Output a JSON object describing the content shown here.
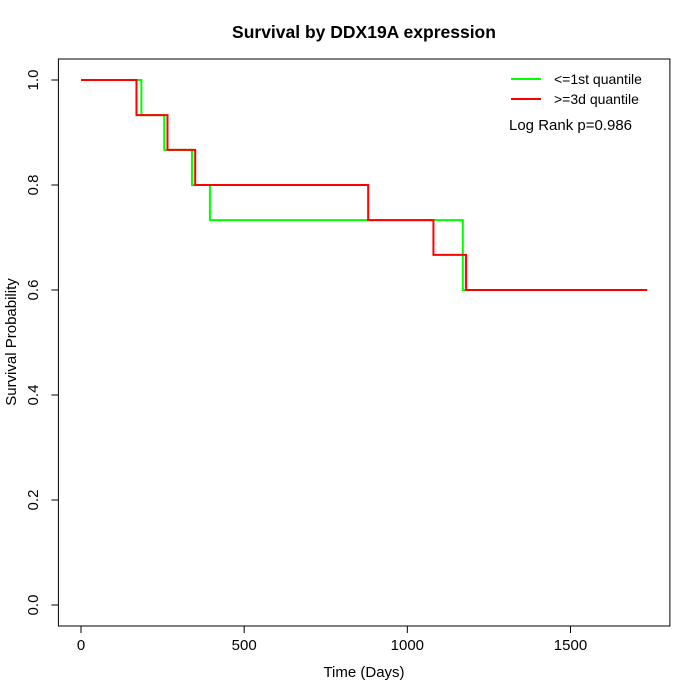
{
  "chart_data": {
    "type": "line",
    "subtype": "kaplan_meier_step_curve",
    "title": "Survival by DDX19A expression",
    "xlabel": "Time (Days)",
    "ylabel": "Survival Probability",
    "xticks": [
      0,
      500,
      1000,
      1500
    ],
    "xtick_labels": [
      "0",
      "500",
      "1000",
      "1500"
    ],
    "yticks": [
      0.0,
      0.2,
      0.4,
      0.6,
      0.8,
      1.0
    ],
    "ytick_labels": [
      "0.0",
      "0.2",
      "0.4",
      "0.6",
      "0.8",
      "1.0"
    ],
    "xlim": [
      0,
      1750
    ],
    "ylim": [
      0,
      1
    ],
    "grid": false,
    "legend_position": "top-right",
    "annotation": "Log Rank p=0.986",
    "series": [
      {
        "name": "<=1st quantile",
        "color": "#00ff00",
        "steps": [
          [
            0,
            1.0
          ],
          [
            185,
            0.933
          ],
          [
            255,
            0.867
          ],
          [
            340,
            0.8
          ],
          [
            395,
            0.733
          ],
          [
            1170,
            0.6
          ]
        ],
        "end_time": 1735
      },
      {
        "name": ">=3d quantile",
        "color": "#ff0000",
        "steps": [
          [
            0,
            1.0
          ],
          [
            170,
            0.933
          ],
          [
            265,
            0.867
          ],
          [
            350,
            0.8
          ],
          [
            880,
            0.733
          ],
          [
            1080,
            0.667
          ],
          [
            1180,
            0.6
          ]
        ],
        "end_time": 1735
      }
    ]
  }
}
